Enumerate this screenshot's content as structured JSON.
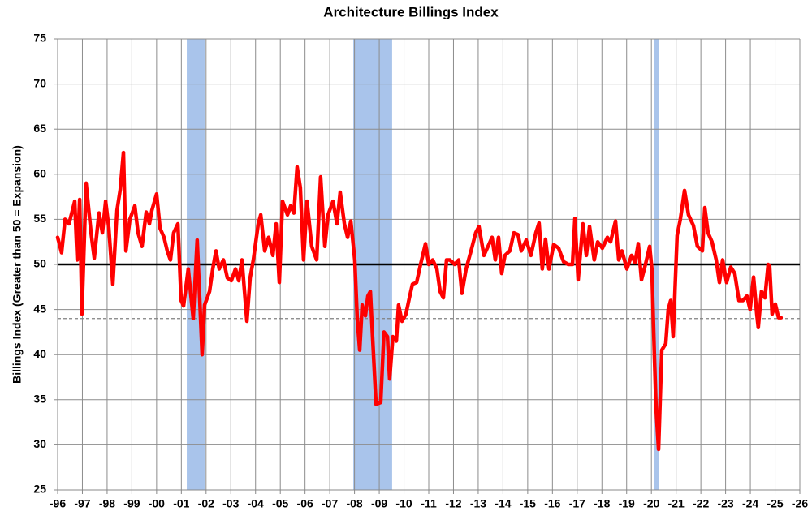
{
  "chart_data": {
    "type": "line",
    "title": "Architecture Billings Index",
    "y_label": "Billings Index (Greater than 50 = Expansion)",
    "xlim": [
      1996,
      2026
    ],
    "xticks": [
      {
        "value": 1996,
        "label": "-96"
      },
      {
        "value": 1997,
        "label": "-97"
      },
      {
        "value": 1998,
        "label": "-98"
      },
      {
        "value": 1999,
        "label": "-99"
      },
      {
        "value": 2000,
        "label": "-00"
      },
      {
        "value": 2001,
        "label": "-01"
      },
      {
        "value": 2002,
        "label": "-02"
      },
      {
        "value": 2003,
        "label": "-03"
      },
      {
        "value": 2004,
        "label": "-04"
      },
      {
        "value": 2005,
        "label": "-05"
      },
      {
        "value": 2006,
        "label": "-06"
      },
      {
        "value": 2007,
        "label": "-07"
      },
      {
        "value": 2008,
        "label": "-08"
      },
      {
        "value": 2009,
        "label": "-09"
      },
      {
        "value": 2010,
        "label": "-10"
      },
      {
        "value": 2011,
        "label": "-11"
      },
      {
        "value": 2012,
        "label": "-12"
      },
      {
        "value": 2013,
        "label": "-13"
      },
      {
        "value": 2014,
        "label": "-14"
      },
      {
        "value": 2015,
        "label": "-15"
      },
      {
        "value": 2016,
        "label": "-16"
      },
      {
        "value": 2017,
        "label": "-17"
      },
      {
        "value": 2018,
        "label": "-18"
      },
      {
        "value": 2019,
        "label": "-19"
      },
      {
        "value": 2020,
        "label": "-20"
      },
      {
        "value": 2021,
        "label": "-21"
      },
      {
        "value": 2022,
        "label": "-22"
      },
      {
        "value": 2023,
        "label": "-23"
      },
      {
        "value": 2024,
        "label": "-24"
      },
      {
        "value": 2025,
        "label": "-25"
      },
      {
        "value": 2026,
        "label": "-26"
      }
    ],
    "ylim": [
      25,
      75
    ],
    "yticks": [
      25,
      30,
      35,
      40,
      45,
      50,
      55,
      60,
      65,
      70,
      75
    ],
    "grid": true,
    "shaded_periods": [
      [
        2001.22,
        2001.94
      ],
      [
        2007.95,
        2009.52
      ],
      [
        2020.12,
        2020.29
      ]
    ],
    "shade_color": "#a9c4eb",
    "reference_lines": [
      {
        "value": 50,
        "style": "solid",
        "color": "#000000"
      },
      {
        "value": 44,
        "style": "dashed",
        "color": "#808080"
      }
    ],
    "x": [
      1996.0,
      1996.16,
      1996.3,
      1996.46,
      1996.69,
      1996.79,
      1996.89,
      1996.98,
      1997.15,
      1997.35,
      1997.48,
      1997.67,
      1997.81,
      1997.94,
      1998.07,
      1998.23,
      1998.4,
      1998.53,
      1998.66,
      1998.76,
      1998.92,
      1999.12,
      1999.25,
      1999.41,
      1999.58,
      1999.71,
      1999.81,
      2000.0,
      2000.14,
      2000.3,
      2000.43,
      2000.56,
      2000.69,
      2000.86,
      2000.99,
      2001.09,
      2001.28,
      2001.48,
      2001.64,
      2001.84,
      2001.94,
      2002.14,
      2002.27,
      2002.4,
      2002.53,
      2002.7,
      2002.86,
      2003.02,
      2003.19,
      2003.32,
      2003.45,
      2003.65,
      2003.78,
      2003.91,
      2004.11,
      2004.21,
      2004.37,
      2004.53,
      2004.7,
      2004.83,
      2004.96,
      2005.09,
      2005.29,
      2005.42,
      2005.55,
      2005.68,
      2005.81,
      2005.94,
      2006.08,
      2006.27,
      2006.47,
      2006.63,
      2006.8,
      2006.93,
      2007.13,
      2007.29,
      2007.42,
      2007.59,
      2007.72,
      2007.85,
      2008.01,
      2008.11,
      2008.21,
      2008.31,
      2008.44,
      2008.54,
      2008.64,
      2008.73,
      2008.87,
      2009.06,
      2009.19,
      2009.33,
      2009.42,
      2009.55,
      2009.69,
      2009.78,
      2009.92,
      2010.08,
      2010.21,
      2010.34,
      2010.51,
      2010.67,
      2010.87,
      2011.0,
      2011.16,
      2011.33,
      2011.46,
      2011.59,
      2011.72,
      2011.85,
      2012.05,
      2012.21,
      2012.34,
      2012.51,
      2012.71,
      2012.9,
      2013.03,
      2013.23,
      2013.43,
      2013.56,
      2013.69,
      2013.82,
      2013.95,
      2014.08,
      2014.28,
      2014.44,
      2014.61,
      2014.74,
      2014.94,
      2015.13,
      2015.33,
      2015.46,
      2015.59,
      2015.72,
      2015.86,
      2016.05,
      2016.25,
      2016.45,
      2016.64,
      2016.81,
      2016.91,
      2017.04,
      2017.23,
      2017.37,
      2017.5,
      2017.69,
      2017.83,
      2018.02,
      2018.22,
      2018.35,
      2018.55,
      2018.68,
      2018.81,
      2019.01,
      2019.2,
      2019.34,
      2019.47,
      2019.6,
      2019.76,
      2019.93,
      2020.02,
      2020.12,
      2020.19,
      2020.29,
      2020.42,
      2020.58,
      2020.68,
      2020.78,
      2020.88,
      2021.04,
      2021.17,
      2021.34,
      2021.5,
      2021.7,
      2021.86,
      2022.06,
      2022.16,
      2022.29,
      2022.45,
      2022.62,
      2022.75,
      2022.88,
      2023.04,
      2023.21,
      2023.37,
      2023.54,
      2023.7,
      2023.86,
      2023.99,
      2024.13,
      2024.26,
      2024.32,
      2024.45,
      2024.59,
      2024.72,
      2024.78,
      2024.88,
      2025.01,
      2025.14,
      2025.24
    ],
    "series": [
      {
        "name": "Billings Index",
        "color": "#ff0000",
        "values": [
          53,
          51.3,
          55,
          54.5,
          57,
          50.5,
          57.2,
          44.5,
          59,
          53.5,
          50.7,
          55.7,
          53.5,
          57,
          54,
          47.8,
          56,
          58.3,
          62.4,
          51.5,
          55,
          56.5,
          53.5,
          52,
          55.8,
          54.5,
          56,
          57.8,
          54,
          53,
          51.5,
          50.5,
          53.5,
          54.5,
          46,
          45.4,
          49.5,
          44,
          52.7,
          40,
          45.5,
          47,
          49.5,
          51.5,
          49.5,
          50.5,
          48.5,
          48.2,
          49.5,
          48.2,
          50.5,
          43.7,
          48.5,
          50.5,
          54.5,
          55.5,
          51.5,
          53,
          51,
          54.5,
          48,
          57,
          55.5,
          56.5,
          55.7,
          60.8,
          58.5,
          50.5,
          57,
          52,
          50.5,
          59.7,
          52,
          55.5,
          57,
          54.5,
          58,
          54.5,
          53,
          54.8,
          50.5,
          44,
          40.5,
          45.5,
          44.3,
          46.5,
          47,
          42,
          34.5,
          34.7,
          42.5,
          42,
          37.3,
          42,
          41.5,
          45.5,
          43.7,
          44.5,
          46.2,
          47.8,
          48,
          50,
          52.3,
          50,
          50.5,
          49.5,
          47,
          46.3,
          50.5,
          50.5,
          50,
          50.5,
          46.8,
          49.5,
          51.5,
          53.5,
          54.2,
          51,
          52.2,
          53,
          50.5,
          53,
          49,
          51,
          51.5,
          53.5,
          53.3,
          51.5,
          52.7,
          51,
          53.5,
          54.6,
          49.5,
          52.8,
          49.5,
          52.2,
          51.8,
          50.3,
          50,
          50,
          55.1,
          48.3,
          54.5,
          51,
          54.2,
          50.5,
          52.5,
          51.8,
          53,
          52.5,
          54.8,
          50.5,
          51.5,
          49.5,
          51,
          50.2,
          52.3,
          48.3,
          50,
          52,
          49.5,
          40,
          34,
          29.5,
          40.5,
          41.2,
          45,
          46,
          42,
          53.2,
          55,
          58.2,
          55.5,
          54.3,
          52,
          51.5,
          56.3,
          53.5,
          52.5,
          50.5,
          48,
          50.5,
          48,
          49.7,
          49,
          46,
          46,
          46.5,
          45,
          48.6,
          44.5,
          43,
          47,
          46.3,
          50,
          49.8,
          44.5,
          45.6,
          44.1,
          44.1
        ]
      }
    ]
  }
}
